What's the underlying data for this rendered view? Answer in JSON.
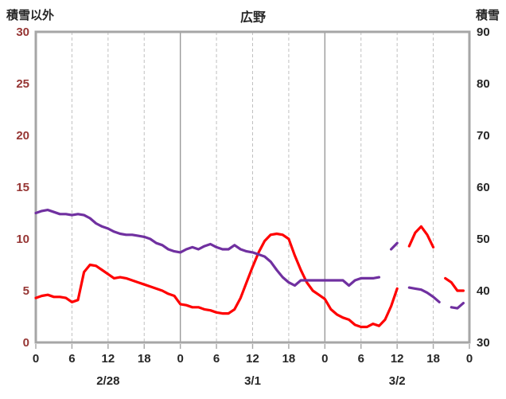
{
  "chart_data": {
    "type": "line",
    "title": "広野",
    "x_unit": "hour",
    "x_range_hours": [
      0,
      72
    ],
    "x_tick_interval_hours": 6,
    "x_hour_labels": [
      "0",
      "6",
      "12",
      "18",
      "0",
      "6",
      "12",
      "18",
      "0",
      "6",
      "12",
      "18",
      "0"
    ],
    "date_labels": [
      {
        "label": "2/28",
        "hour": 12
      },
      {
        "label": "3/1",
        "hour": 36
      },
      {
        "label": "3/2",
        "hour": 60
      }
    ],
    "left_axis": {
      "title": "積雪以外",
      "min": 0,
      "max": 30,
      "ticks": [
        0,
        5,
        10,
        15,
        20,
        25,
        30
      ],
      "label_color": "#963634"
    },
    "right_axis": {
      "title": "積雪",
      "min": 30,
      "max": 90,
      "ticks": [
        30,
        40,
        50,
        60,
        70,
        80,
        90
      ],
      "label_color": "#262626"
    },
    "grid": {
      "vertical_dashed_every_hours": 6,
      "vertical_solid_every_hours": 24,
      "horizontal": false
    },
    "legend": "none",
    "series": [
      {
        "name": "積雪以外",
        "name_en": "non-snow",
        "axis": "left",
        "color": "#ff0000",
        "values": [
          4.3,
          4.5,
          4.6,
          4.4,
          4.4,
          4.3,
          3.9,
          4.1,
          6.8,
          7.5,
          7.4,
          7.0,
          6.6,
          6.2,
          6.3,
          6.2,
          6.0,
          5.8,
          5.6,
          5.4,
          5.2,
          5.0,
          4.7,
          4.5,
          3.7,
          3.6,
          3.4,
          3.4,
          3.2,
          3.1,
          2.9,
          2.8,
          2.8,
          3.2,
          4.3,
          5.8,
          7.3,
          8.7,
          9.8,
          10.4,
          10.5,
          10.4,
          10.0,
          8.4,
          7.0,
          5.8,
          5.0,
          4.6,
          4.2,
          3.2,
          2.7,
          2.4,
          2.2,
          1.7,
          1.5,
          1.5,
          1.8,
          1.6,
          2.2,
          3.5,
          5.2,
          null,
          9.3,
          10.6,
          11.2,
          10.4,
          9.2,
          null,
          6.2,
          5.8,
          5.0,
          5.0
        ]
      },
      {
        "name": "積雪",
        "name_en": "snow-depth",
        "axis": "right",
        "color": "#7030a0",
        "values": [
          55.0,
          55.4,
          55.6,
          55.2,
          54.8,
          54.8,
          54.6,
          54.8,
          54.6,
          54.0,
          53.0,
          52.4,
          52.0,
          51.4,
          51.0,
          50.8,
          50.8,
          50.6,
          50.4,
          50.0,
          49.2,
          48.8,
          48.0,
          47.6,
          47.4,
          48.0,
          48.4,
          48.0,
          48.6,
          49.0,
          48.4,
          48.0,
          48.0,
          48.8,
          48.0,
          47.6,
          47.4,
          47.0,
          46.6,
          45.6,
          44.0,
          42.6,
          41.6,
          41.0,
          42.0,
          42.0,
          42.0,
          42.0,
          42.0,
          42.0,
          42.0,
          42.0,
          41.0,
          42.0,
          42.4,
          42.4,
          42.4,
          42.6,
          null,
          48.0,
          49.2,
          null,
          40.6,
          40.4,
          40.2,
          39.6,
          38.8,
          37.8,
          null,
          36.8,
          36.6,
          37.6
        ]
      }
    ],
    "colors": {
      "plot_border": "#a6a6a6",
      "solid_gridline": "#999999",
      "dashed_gridline": "#c0c0c0",
      "x_label_color": "#262626"
    }
  }
}
